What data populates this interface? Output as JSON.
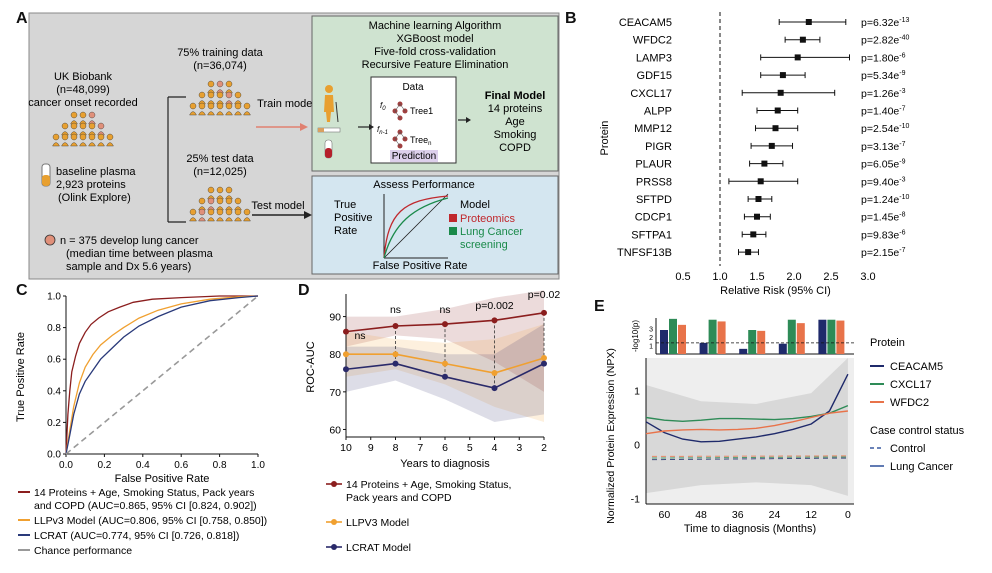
{
  "panels": {
    "a": "A",
    "b": "B",
    "c": "C",
    "d": "D",
    "e": "E"
  },
  "panel_a": {
    "uk_biobank": {
      "line1": "UK Biobank",
      "line2": "(n=48,099)",
      "line3": "cancer onset recorded"
    },
    "plasma": {
      "line1": "baseline plasma",
      "line2": "2,923 proteins",
      "line3": "(Olink Explore)"
    },
    "training": {
      "line1": "75% training data",
      "line2": "(n=36,074)"
    },
    "test": {
      "line1": "25% test data",
      "line2": "(n=12,025)"
    },
    "train_model_label": "Train model",
    "test_model_label": "Test model",
    "ml_box": {
      "line1": "Machine learning Algorithm",
      "line2": "XGBoost model",
      "line3": "Five-fold cross-validation",
      "line4": "Recursive Feature Elimination",
      "data": "Data",
      "tree1": "Tree1",
      "treen": "Tree",
      "treen_sub": "n",
      "f0": "f",
      "f0_sub": "0",
      "fn1": "f",
      "fn1_sub": "n-1",
      "prediction": "Prediction"
    },
    "final_model": {
      "title": "Final Model",
      "line1": "14 proteins",
      "line2": "Age",
      "line3": "Smoking",
      "line4": "COPD"
    },
    "assess": {
      "title": "Assess Performance",
      "ylabel_1": "True",
      "ylabel_2": "Positive",
      "ylabel_3": "Rate",
      "xlabel": "False Positive Rate",
      "legend_title": "Model",
      "legend_proteomics": "Proteomics",
      "legend_screening_1": "Lung Cancer",
      "legend_screening_2": "screening",
      "color_proteomics": "#c0282d",
      "color_screening": "#1a8a4a"
    },
    "footnote": {
      "line1": "n = 375 develop lung cancer",
      "line2": "(median time between plasma",
      "line3": "sample and Dx 5.6 years)"
    }
  },
  "chart_data": [
    {
      "panel": "B",
      "type": "forest",
      "ylabel": "Protein",
      "xlabel": "Relative Risk (95% CI)",
      "xticks": [
        "0.5",
        "1.0",
        "1.5",
        "2.0",
        "2.5",
        "3.0"
      ],
      "xlim": [
        0.5,
        3.0
      ],
      "reference_line": 1.0,
      "rows": [
        {
          "protein": "CEACAM5",
          "rr": 2.2,
          "lo": 1.8,
          "hi": 2.7,
          "p": "p=6.32e",
          "exp": "-13"
        },
        {
          "protein": "WFDC2",
          "rr": 2.12,
          "lo": 1.88,
          "hi": 2.35,
          "p": "p=2.82e",
          "exp": "-40"
        },
        {
          "protein": "LAMP3",
          "rr": 2.05,
          "lo": 1.55,
          "hi": 2.75,
          "p": "p=1.80e",
          "exp": "-6"
        },
        {
          "protein": "GDF15",
          "rr": 1.85,
          "lo": 1.55,
          "hi": 2.15,
          "p": "p=5.34e",
          "exp": "-9"
        },
        {
          "protein": "CXCL17",
          "rr": 1.82,
          "lo": 1.3,
          "hi": 2.55,
          "p": "p=1.26e",
          "exp": "-3"
        },
        {
          "protein": "ALPP",
          "rr": 1.78,
          "lo": 1.5,
          "hi": 2.05,
          "p": "p=1.40e",
          "exp": "-7"
        },
        {
          "protein": "MMP12",
          "rr": 1.75,
          "lo": 1.48,
          "hi": 2.05,
          "p": "p=2.54e",
          "exp": "-10"
        },
        {
          "protein": "PIGR",
          "rr": 1.7,
          "lo": 1.42,
          "hi": 1.98,
          "p": "p=3.13e",
          "exp": "-7"
        },
        {
          "protein": "PLAUR",
          "rr": 1.6,
          "lo": 1.4,
          "hi": 1.85,
          "p": "p=6.05e",
          "exp": "-9"
        },
        {
          "protein": "PRSS8",
          "rr": 1.55,
          "lo": 1.12,
          "hi": 2.05,
          "p": "p=9.40e",
          "exp": "-3"
        },
        {
          "protein": "SFTPD",
          "rr": 1.52,
          "lo": 1.38,
          "hi": 1.7,
          "p": "p=1.24e",
          "exp": "-10"
        },
        {
          "protein": "CDCP1",
          "rr": 1.5,
          "lo": 1.33,
          "hi": 1.68,
          "p": "p=1.45e",
          "exp": "-8"
        },
        {
          "protein": "SFTPA1",
          "rr": 1.45,
          "lo": 1.3,
          "hi": 1.62,
          "p": "p=9.83e",
          "exp": "-6"
        },
        {
          "protein": "TNFSF13B",
          "rr": 1.38,
          "lo": 1.25,
          "hi": 1.52,
          "p": "p=2.15e",
          "exp": "-7"
        }
      ]
    },
    {
      "panel": "C",
      "type": "line",
      "xlabel": "False Positive Rate",
      "ylabel": "True Positive Rate",
      "xticks": [
        "0.0",
        "0.2",
        "0.4",
        "0.6",
        "0.8",
        "1.0"
      ],
      "yticks": [
        "0.0",
        "0.2",
        "0.4",
        "0.6",
        "0.8",
        "1.0"
      ],
      "xlim": [
        0,
        1
      ],
      "ylim": [
        0,
        1
      ],
      "series": [
        {
          "name": "14 Proteins + Age, Smoking Status, Pack years and COPD (AUC=0.865, 95% CI [0.824, 0.902])",
          "color": "#8b1e1e",
          "x": [
            0,
            0.01,
            0.02,
            0.03,
            0.05,
            0.07,
            0.1,
            0.13,
            0.17,
            0.22,
            0.28,
            0.35,
            0.45,
            0.6,
            0.8,
            1.0
          ],
          "y": [
            0,
            0.25,
            0.4,
            0.52,
            0.62,
            0.7,
            0.77,
            0.82,
            0.86,
            0.9,
            0.93,
            0.96,
            0.98,
            0.99,
            1.0,
            1.0
          ]
        },
        {
          "name": "LLPv3 Model (AUC=0.806, 95% CI [0.758, 0.850])",
          "color": "#f0a030",
          "x": [
            0,
            0.02,
            0.04,
            0.07,
            0.1,
            0.14,
            0.18,
            0.24,
            0.3,
            0.38,
            0.48,
            0.6,
            0.75,
            0.9,
            1.0
          ],
          "y": [
            0,
            0.15,
            0.3,
            0.45,
            0.55,
            0.63,
            0.69,
            0.75,
            0.8,
            0.86,
            0.91,
            0.95,
            0.98,
            0.995,
            1.0
          ]
        },
        {
          "name": "LCRAT (AUC=0.774, 95% CI [0.726, 0.818])",
          "color": "#2a3a7a",
          "x": [
            0,
            0.02,
            0.04,
            0.07,
            0.1,
            0.14,
            0.18,
            0.24,
            0.3,
            0.38,
            0.48,
            0.6,
            0.75,
            0.9,
            1.0
          ],
          "y": [
            0,
            0.12,
            0.25,
            0.38,
            0.46,
            0.53,
            0.6,
            0.67,
            0.74,
            0.81,
            0.87,
            0.93,
            0.97,
            0.99,
            1.0
          ]
        },
        {
          "name": "Chance performance",
          "color": "#999999",
          "dashed": true,
          "x": [
            0,
            1
          ],
          "y": [
            0,
            1
          ]
        }
      ]
    },
    {
      "panel": "D",
      "type": "line",
      "xlabel": "Years to diagnosis",
      "ylabel": "ROC-AUC",
      "xticks": [
        "10",
        "9",
        "8",
        "7",
        "6",
        "5",
        "4",
        "3",
        "2"
      ],
      "yticks": [
        "60",
        "70",
        "80",
        "90"
      ],
      "xlim": [
        10,
        2
      ],
      "ylim": [
        58,
        96
      ],
      "annotations": [
        {
          "text": "ns",
          "x": 10,
          "y": 84
        },
        {
          "text": "ns",
          "x": 8,
          "y": 91
        },
        {
          "text": "ns",
          "x": 6,
          "y": 91
        },
        {
          "text": "p=0.002",
          "x": 4,
          "y": 92
        },
        {
          "text": "p=0.02",
          "x": 2,
          "y": 95
        }
      ],
      "series": [
        {
          "name": "14 Proteins + Age, Smoking Status, Pack years and COPD",
          "color": "#8b1e1e",
          "x": [
            10,
            8,
            6,
            4,
            2
          ],
          "y": [
            86,
            87.5,
            88,
            89,
            91
          ],
          "band": [
            [
              82,
              90
            ],
            [
              85,
              90
            ],
            [
              84,
              92
            ],
            [
              78,
              95
            ],
            [
              70,
              97
            ]
          ]
        },
        {
          "name": "LLPV3 Model",
          "color": "#f0a030",
          "x": [
            10,
            8,
            6,
            4,
            2
          ],
          "y": [
            80,
            80,
            77.5,
            75,
            79
          ],
          "band": [
            [
              74,
              86
            ],
            [
              76,
              84
            ],
            [
              72,
              83
            ],
            [
              66,
              84
            ],
            [
              62,
              88
            ]
          ]
        },
        {
          "name": "LCRAT Model",
          "color": "#2a2a6a",
          "x": [
            10,
            8,
            6,
            4,
            2
          ],
          "y": [
            76,
            77.5,
            74,
            71,
            77.5
          ],
          "band": [
            [
              70,
              82
            ],
            [
              73,
              82
            ],
            [
              68,
              80
            ],
            [
              62,
              80
            ],
            [
              64,
              88
            ]
          ]
        }
      ]
    },
    {
      "panel": "E",
      "type": "line",
      "xlabel": "Time to diagnosis (Months)",
      "ylabel": "Normalized Protein Expression (NPX)",
      "xticks": [
        "60",
        "48",
        "36",
        "24",
        "12",
        "0"
      ],
      "yticks": [
        "1",
        "0",
        "-1"
      ],
      "xlim": [
        66,
        -2
      ],
      "ylim": [
        -1.1,
        1.6
      ],
      "inset_ylabel": "-log10(p)",
      "inset_yticks": [
        "1",
        "2",
        "3"
      ],
      "inset_groups": [
        {
          "values": [
            2.8,
            4.1,
            3.4
          ]
        },
        {
          "values": [
            1.3,
            4.0,
            3.8
          ]
        },
        {
          "values": [
            0.6,
            2.8,
            2.7
          ]
        },
        {
          "values": [
            1.2,
            4.0,
            3.6
          ]
        },
        {
          "values": [
            4.0,
            4.0,
            3.9
          ]
        }
      ],
      "legend_protein_title": "Protein",
      "legend_status_title": "Case control status",
      "series": [
        {
          "name": "CEACAM5",
          "color": "#1f2a6b",
          "x": [
            66,
            60,
            54,
            48,
            42,
            36,
            30,
            24,
            18,
            12,
            6,
            0
          ],
          "y": [
            0.42,
            0.22,
            0.1,
            0.05,
            0.06,
            0.1,
            0.14,
            0.2,
            0.28,
            0.38,
            0.62,
            1.3
          ]
        },
        {
          "name": "CXCL17",
          "color": "#2e8b57",
          "x": [
            66,
            60,
            54,
            48,
            42,
            36,
            30,
            24,
            18,
            12,
            6,
            0
          ],
          "y": [
            0.5,
            0.45,
            0.43,
            0.45,
            0.48,
            0.48,
            0.47,
            0.46,
            0.48,
            0.52,
            0.58,
            0.72
          ]
        },
        {
          "name": "WFDC2",
          "color": "#e8734a",
          "x": [
            66,
            60,
            54,
            48,
            42,
            36,
            30,
            24,
            18,
            12,
            6,
            0
          ],
          "y": [
            0.2,
            0.25,
            0.27,
            0.28,
            0.27,
            0.28,
            0.3,
            0.35,
            0.42,
            0.5,
            0.58,
            0.62
          ]
        }
      ],
      "control_series": [
        {
          "name": "Control",
          "color": "#3a5aa0",
          "y": -0.3
        },
        {
          "name": "Lung Cancer",
          "color": "#3a5aa0",
          "y": -0.22
        }
      ],
      "legend_control": "Control",
      "legend_lung_cancer": "Lung Cancer"
    }
  ],
  "panel_c_legend": [
    {
      "line1": "14 Proteins + Age, Smoking Status, Pack years",
      "line2": "and COPD (AUC=0.865, 95% CI [0.824, 0.902])",
      "color": "#8b1e1e"
    },
    {
      "line1": "LLPv3 Model (AUC=0.806, 95% CI [0.758, 0.850])",
      "color": "#f0a030"
    },
    {
      "line1": "LCRAT (AUC=0.774, 95% CI [0.726, 0.818])",
      "color": "#2a3a7a"
    },
    {
      "line1": "Chance performance",
      "color": "#999999"
    }
  ],
  "panel_d_legend": [
    {
      "line1": "14 Proteins + Age, Smoking Status,",
      "line2": "Pack years and COPD",
      "color": "#8b1e1e"
    },
    {
      "line1": "LLPV3 Model",
      "color": "#f0a030"
    },
    {
      "line1": "LCRAT Model",
      "color": "#2a2a6a"
    }
  ]
}
